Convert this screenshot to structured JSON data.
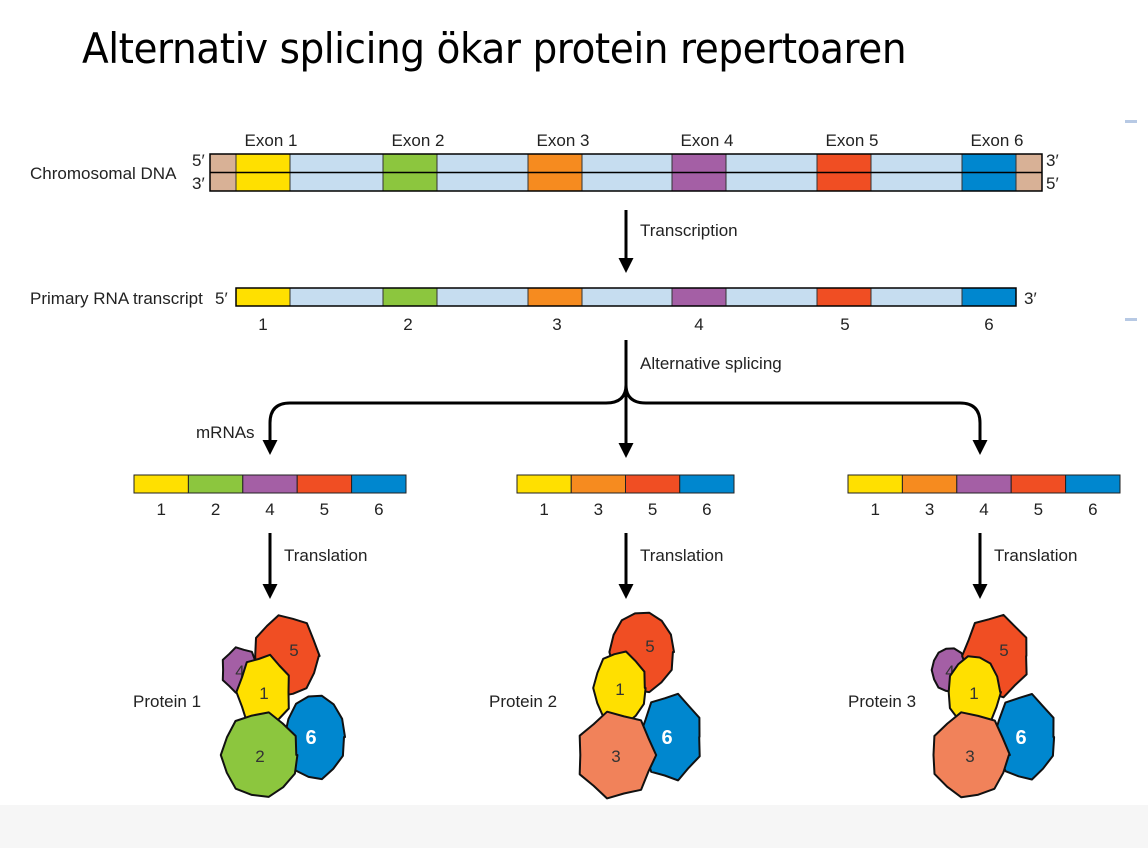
{
  "title": "Alternativ splicing ökar protein repertoaren",
  "colors": {
    "flank": "#d8b196",
    "intron": "#c6ddf0",
    "exon1": "#ffe000",
    "exon2": "#8cc63e",
    "exon3": "#f68b1f",
    "exon4": "#a45fa5",
    "exon5": "#f04e23",
    "exon6": "#0087cf",
    "exon3_protein": "#f1825a"
  },
  "dna": {
    "label": "Chromosomal DNA",
    "top_left": "5′",
    "bottom_left": "3′",
    "top_right": "3′",
    "bottom_right": "5′",
    "exon_labels": [
      "Exon 1",
      "Exon 2",
      "Exon 3",
      "Exon 4",
      "Exon 5",
      "Exon 6"
    ]
  },
  "step1": {
    "label": "Transcription"
  },
  "rna": {
    "label": "Primary RNA transcript",
    "left_end": "5′",
    "right_end": "3′",
    "numbers": [
      "1",
      "2",
      "3",
      "4",
      "5",
      "6"
    ]
  },
  "step2": {
    "label": "Alternative splicing"
  },
  "mrna_label": "mRNAs",
  "mrnas": [
    {
      "exons": [
        "1",
        "2",
        "4",
        "5",
        "6"
      ]
    },
    {
      "exons": [
        "1",
        "3",
        "5",
        "6"
      ]
    },
    {
      "exons": [
        "1",
        "3",
        "4",
        "5",
        "6"
      ]
    }
  ],
  "translation_label": "Translation",
  "proteins": [
    {
      "label": "Protein 1",
      "subunits": [
        "4",
        "5",
        "1",
        "6",
        "2"
      ]
    },
    {
      "label": "Protein 2",
      "subunits": [
        "5",
        "1",
        "6",
        "3"
      ]
    },
    {
      "label": "Protein 3",
      "subunits": [
        "4",
        "5",
        "1",
        "6",
        "3"
      ]
    }
  ]
}
